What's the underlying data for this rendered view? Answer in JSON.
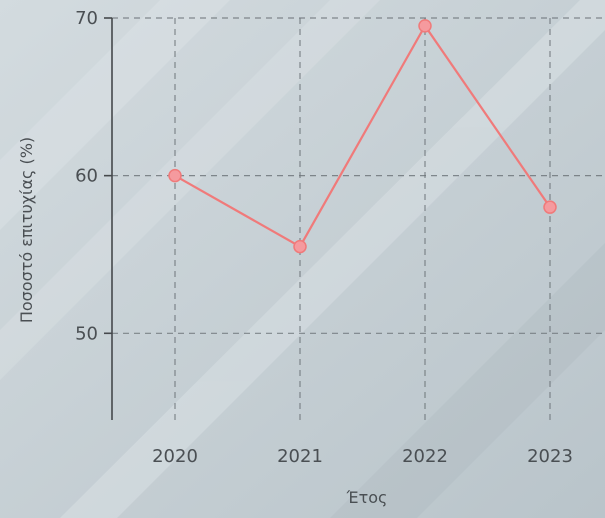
{
  "chart_data": {
    "type": "line",
    "x": [
      2020,
      2021,
      2022,
      2023
    ],
    "series": [
      {
        "values": [
          60.0,
          55.5,
          69.5,
          58.0
        ]
      }
    ],
    "xlabel": "Έτος",
    "ylabel": "Ποσοστό επιτυχίας (%)",
    "ylim": [
      44.5,
      70
    ],
    "yticks": [
      50,
      60,
      70
    ],
    "xticks": [
      "2020",
      "2021",
      "2022",
      "2023"
    ],
    "grid": true,
    "colors": {
      "series": "#f07a7a",
      "marker": "#f59a9e",
      "background": "#c9d3d8"
    }
  }
}
